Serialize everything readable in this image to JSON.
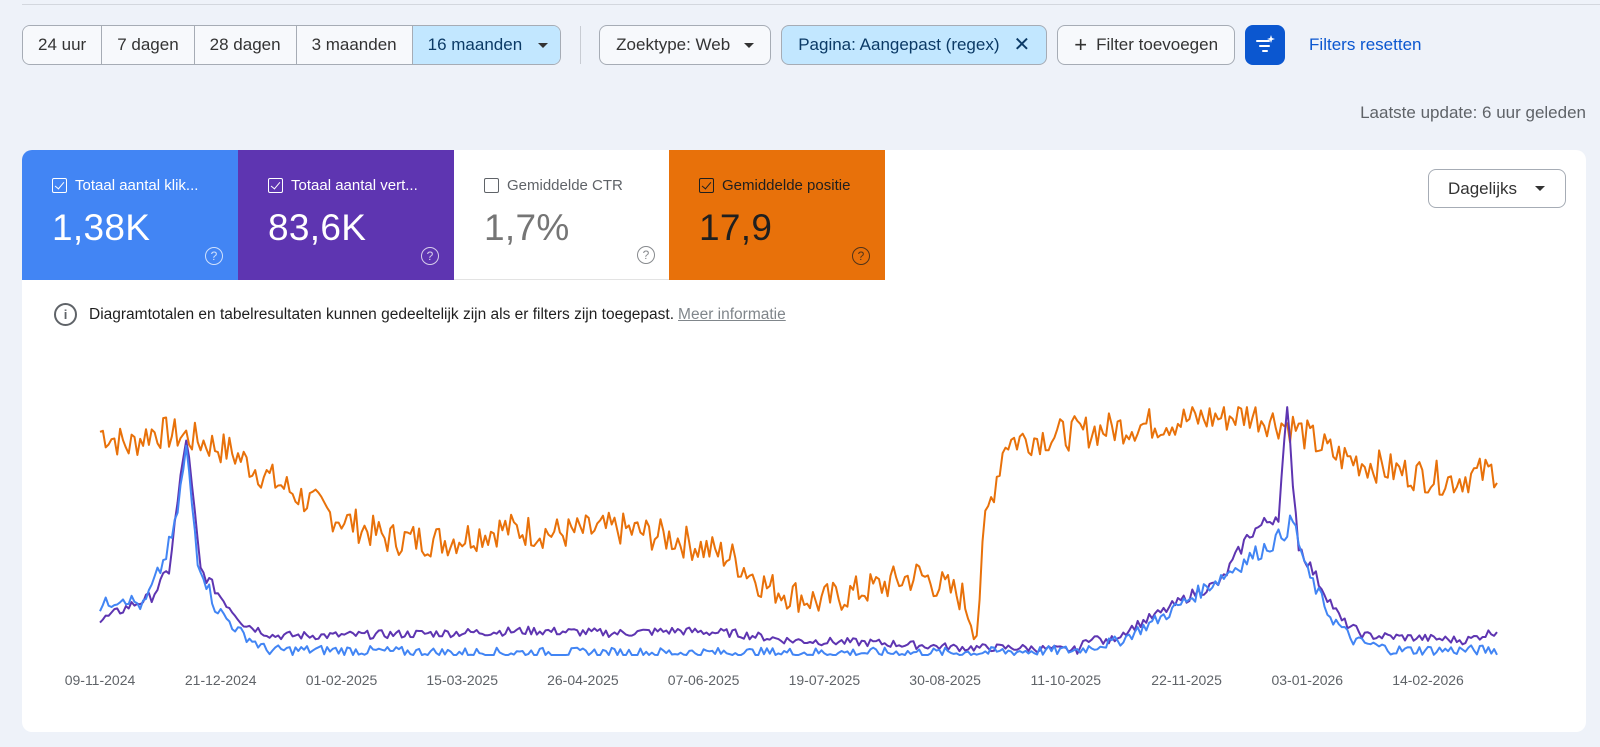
{
  "date_ranges": [
    "24 uur",
    "7 dagen",
    "28 dagen",
    "3 maanden",
    "16 maanden"
  ],
  "active_range": "16 maanden",
  "filters": {
    "search_type": "Zoektype: Web",
    "page_filter": "Pagina: Aangepast (regex)",
    "add_filter": "Filter toevoegen",
    "reset": "Filters resetten"
  },
  "last_update": "Laatste update: 6 uur geleden",
  "metrics": [
    {
      "label": "Totaal aantal klik...",
      "value": "1,38K",
      "checked": true,
      "color": "#4285f4"
    },
    {
      "label": "Totaal aantal vert...",
      "value": "83,6K",
      "checked": true,
      "color": "#5e35b1"
    },
    {
      "label": "Gemiddelde CTR",
      "value": "1,7%",
      "checked": false,
      "color": "#ffffff"
    },
    {
      "label": "Gemiddelde positie",
      "value": "17,9",
      "checked": true,
      "color": "#e8710a"
    }
  ],
  "granularity": "Dagelijks",
  "info": {
    "text": "Diagramtotalen en tabelresultaten kunnen gedeeltelijk zijn als er filters zijn toegepast.",
    "link": "Meer informatie"
  },
  "chart_data": {
    "type": "line",
    "x_start": "2024-11-09",
    "x_end": "2026-03-10",
    "x_ticks": [
      "09-11-2024",
      "21-12-2024",
      "01-02-2025",
      "15-03-2025",
      "26-04-2025",
      "07-06-2025",
      "19-07-2025",
      "30-08-2025",
      "11-10-2025",
      "22-11-2025",
      "03-01-2026",
      "14-02-2026"
    ],
    "series": [
      {
        "color": "#e8710a",
        "keyframes": [
          [
            0,
            0.92
          ],
          [
            10,
            0.86
          ],
          [
            18,
            0.92
          ],
          [
            30,
            0.9
          ],
          [
            45,
            0.84
          ],
          [
            60,
            0.72
          ],
          [
            80,
            0.58
          ],
          [
            100,
            0.48
          ],
          [
            120,
            0.47
          ],
          [
            140,
            0.52
          ],
          [
            160,
            0.5
          ],
          [
            180,
            0.52
          ],
          [
            200,
            0.48
          ],
          [
            220,
            0.4
          ],
          [
            232,
            0.28
          ],
          [
            250,
            0.22
          ],
          [
            270,
            0.28
          ],
          [
            285,
            0.33
          ],
          [
            300,
            0.24
          ],
          [
            305,
            0.1
          ],
          [
            308,
            0.55
          ],
          [
            315,
            0.88
          ],
          [
            330,
            0.9
          ],
          [
            350,
            0.93
          ],
          [
            380,
            0.97
          ],
          [
            400,
            0.99
          ],
          [
            415,
            0.94
          ],
          [
            430,
            0.82
          ],
          [
            450,
            0.76
          ],
          [
            470,
            0.72
          ],
          [
            486,
            0.76
          ]
        ],
        "noise": 0.07
      },
      {
        "color": "#5e35b1",
        "keyframes": [
          [
            0,
            0.14
          ],
          [
            10,
            0.2
          ],
          [
            18,
            0.24
          ],
          [
            24,
            0.35
          ],
          [
            30,
            0.9
          ],
          [
            35,
            0.35
          ],
          [
            42,
            0.24
          ],
          [
            50,
            0.13
          ],
          [
            60,
            0.08
          ],
          [
            80,
            0.08
          ],
          [
            120,
            0.09
          ],
          [
            150,
            0.1
          ],
          [
            180,
            0.09
          ],
          [
            200,
            0.1
          ],
          [
            220,
            0.09
          ],
          [
            240,
            0.06
          ],
          [
            270,
            0.05
          ],
          [
            300,
            0.03
          ],
          [
            320,
            0.03
          ],
          [
            340,
            0.02
          ],
          [
            345,
            0.08
          ],
          [
            350,
            0.05
          ],
          [
            360,
            0.12
          ],
          [
            370,
            0.18
          ],
          [
            380,
            0.25
          ],
          [
            390,
            0.3
          ],
          [
            400,
            0.5
          ],
          [
            410,
            0.58
          ],
          [
            413,
            1.0
          ],
          [
            417,
            0.45
          ],
          [
            425,
            0.28
          ],
          [
            432,
            0.14
          ],
          [
            440,
            0.08
          ],
          [
            460,
            0.07
          ],
          [
            475,
            0.06
          ],
          [
            486,
            0.1
          ]
        ],
        "noise": 0.03
      },
      {
        "color": "#4285f4",
        "keyframes": [
          [
            0,
            0.2
          ],
          [
            8,
            0.24
          ],
          [
            15,
            0.2
          ],
          [
            22,
            0.38
          ],
          [
            26,
            0.52
          ],
          [
            30,
            0.84
          ],
          [
            34,
            0.4
          ],
          [
            40,
            0.2
          ],
          [
            48,
            0.1
          ],
          [
            58,
            0.02
          ],
          [
            80,
            0.02
          ],
          [
            120,
            0.01
          ],
          [
            200,
            0.01
          ],
          [
            300,
            0.01
          ],
          [
            340,
            0.02
          ],
          [
            355,
            0.06
          ],
          [
            370,
            0.16
          ],
          [
            385,
            0.28
          ],
          [
            400,
            0.4
          ],
          [
            410,
            0.48
          ],
          [
            415,
            0.55
          ],
          [
            420,
            0.34
          ],
          [
            428,
            0.16
          ],
          [
            436,
            0.06
          ],
          [
            450,
            0.02
          ],
          [
            486,
            0.02
          ]
        ],
        "noise": 0.04
      }
    ]
  }
}
